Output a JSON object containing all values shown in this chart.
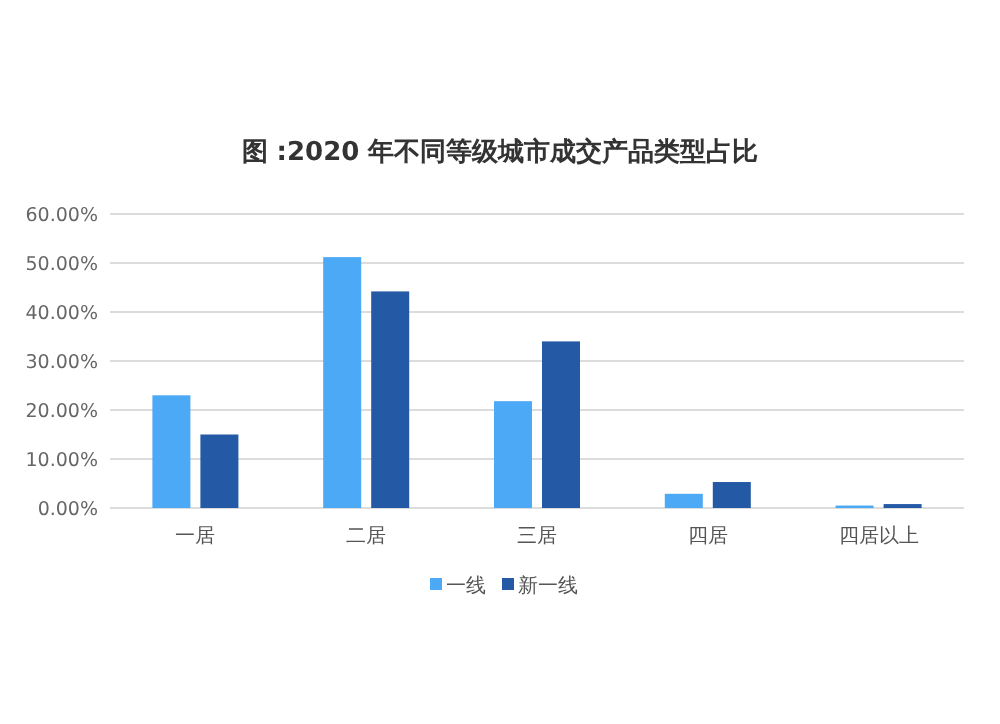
{
  "chart_data": {
    "type": "bar",
    "title": "图 :2020 年不同等级城市成交产品类型占比",
    "categories": [
      "一居",
      "二居",
      "三居",
      "四居",
      "四居以上"
    ],
    "series": [
      {
        "name": "一线",
        "color": "#4ba9f5",
        "values": [
          23.0,
          51.2,
          21.8,
          2.9,
          0.5
        ]
      },
      {
        "name": "新一线",
        "color": "#2459a6",
        "values": [
          15.0,
          44.2,
          34.0,
          5.3,
          0.8
        ]
      }
    ],
    "ylim": [
      0,
      60
    ],
    "yticks": [
      {
        "value": 0,
        "label": "0.00%"
      },
      {
        "value": 10,
        "label": "10.00%"
      },
      {
        "value": 20,
        "label": "20.00%"
      },
      {
        "value": 30,
        "label": "30.00%"
      },
      {
        "value": 40,
        "label": "40.00%"
      },
      {
        "value": 50,
        "label": "50.00%"
      },
      {
        "value": 60,
        "label": "60.00%"
      }
    ],
    "grid": "y",
    "legend": "bottom"
  }
}
